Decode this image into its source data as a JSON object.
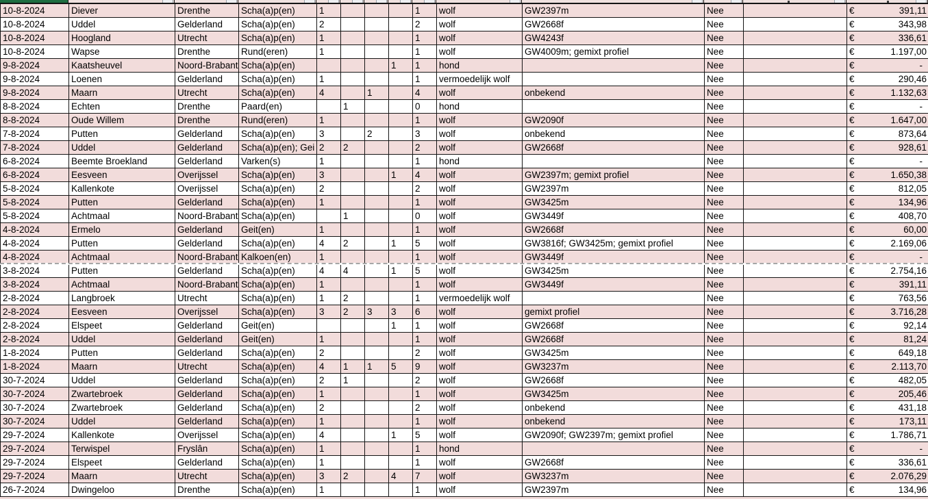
{
  "colors": {
    "band_pink": "#f2dcdb",
    "grid_border": "#141414",
    "selection_green": "#1e6e41",
    "page_break_gray": "#a6a6a6"
  },
  "currency_symbol": "€",
  "rows": [
    {
      "date": "10-8-2024",
      "place": "Diever",
      "province": "Drenthe",
      "animals": "Scha(a)p(en)",
      "counts": [
        "1",
        "",
        "",
        "",
        "1"
      ],
      "cause": "wolf",
      "profile": "GW2397m",
      "settled": "Nee",
      "amount": "391,11"
    },
    {
      "date": "10-8-2024",
      "place": "Uddel",
      "province": "Gelderland",
      "animals": "Scha(a)p(en)",
      "counts": [
        "2",
        "",
        "",
        "",
        "2"
      ],
      "cause": "wolf",
      "profile": "GW2668f",
      "settled": "Nee",
      "amount": "343,98"
    },
    {
      "date": "10-8-2024",
      "place": "Hoogland",
      "province": "Utrecht",
      "animals": "Scha(a)p(en)",
      "counts": [
        "1",
        "",
        "",
        "",
        "1"
      ],
      "cause": "wolf",
      "profile": "GW4243f",
      "settled": "Nee",
      "amount": "336,61"
    },
    {
      "date": "10-8-2024",
      "place": "Wapse",
      "province": "Drenthe",
      "animals": "Rund(eren)",
      "counts": [
        "1",
        "",
        "",
        "",
        "1"
      ],
      "cause": "wolf",
      "profile": "GW4009m; gemixt profiel",
      "settled": "Nee",
      "amount": "1.197,00"
    },
    {
      "date": "9-8-2024",
      "place": "Kaatsheuvel",
      "province": "Noord-Brabant",
      "animals": "Scha(a)p(en)",
      "counts": [
        "",
        "",
        "",
        "1",
        "1"
      ],
      "cause": "hond",
      "profile": "",
      "settled": "Nee",
      "amount": "-"
    },
    {
      "date": "9-8-2024",
      "place": "Loenen",
      "province": "Gelderland",
      "animals": "Scha(a)p(en)",
      "counts": [
        "1",
        "",
        "",
        "",
        "1"
      ],
      "cause": "vermoedelijk wolf",
      "profile": "",
      "settled": "Nee",
      "amount": "290,46"
    },
    {
      "date": "9-8-2024",
      "place": "Maarn",
      "province": "Utrecht",
      "animals": "Scha(a)p(en)",
      "counts": [
        "4",
        "",
        "1",
        "",
        "4"
      ],
      "cause": "wolf",
      "profile": "onbekend",
      "settled": "Nee",
      "amount": "1.132,63"
    },
    {
      "date": "8-8-2024",
      "place": "Echten",
      "province": "Drenthe",
      "animals": "Paard(en)",
      "counts": [
        "",
        "1",
        "",
        "",
        "0"
      ],
      "cause": "hond",
      "profile": "",
      "settled": "Nee",
      "amount": "-"
    },
    {
      "date": "8-8-2024",
      "place": "Oude Willem",
      "province": "Drenthe",
      "animals": "Rund(eren)",
      "counts": [
        "1",
        "",
        "",
        "",
        "1"
      ],
      "cause": "wolf",
      "profile": "GW2090f",
      "settled": "Nee",
      "amount": "1.647,00"
    },
    {
      "date": "7-8-2024",
      "place": "Putten",
      "province": "Gelderland",
      "animals": "Scha(a)p(en)",
      "counts": [
        "3",
        "",
        "2",
        "",
        "3"
      ],
      "cause": "wolf",
      "profile": "onbekend",
      "settled": "Nee",
      "amount": "873,64"
    },
    {
      "date": "7-8-2024",
      "place": "Uddel",
      "province": "Gelderland",
      "animals": "Scha(a)p(en); Gei",
      "counts": [
        "2",
        "2",
        "",
        "",
        "2"
      ],
      "cause": "wolf",
      "profile": "GW2668f",
      "settled": "Nee",
      "amount": "928,61"
    },
    {
      "date": "6-8-2024",
      "place": "Beemte Broekland",
      "province": "Gelderland",
      "animals": "Varken(s)",
      "counts": [
        "1",
        "",
        "",
        "",
        "1"
      ],
      "cause": "hond",
      "profile": "",
      "settled": "Nee",
      "amount": "-"
    },
    {
      "date": "6-8-2024",
      "place": "Eesveen",
      "province": "Overijssel",
      "animals": "Scha(a)p(en)",
      "counts": [
        "3",
        "",
        "",
        "1",
        "4"
      ],
      "cause": "wolf",
      "profile": "GW2397m; gemixt profiel",
      "settled": "Nee",
      "amount": "1.650,38"
    },
    {
      "date": "5-8-2024",
      "place": "Kallenkote",
      "province": "Overijssel",
      "animals": "Scha(a)p(en)",
      "counts": [
        "2",
        "",
        "",
        "",
        "2"
      ],
      "cause": "wolf",
      "profile": "GW2397m",
      "settled": "Nee",
      "amount": "812,05"
    },
    {
      "date": "5-8-2024",
      "place": "Putten",
      "province": "Gelderland",
      "animals": "Scha(a)p(en)",
      "counts": [
        "1",
        "",
        "",
        "",
        "1"
      ],
      "cause": "wolf",
      "profile": "GW3425m",
      "settled": "Nee",
      "amount": "134,96"
    },
    {
      "date": "5-8-2024",
      "place": "Achtmaal",
      "province": "Noord-Brabant",
      "animals": "Scha(a)p(en)",
      "counts": [
        "",
        "1",
        "",
        "",
        "0"
      ],
      "cause": "wolf",
      "profile": "GW3449f",
      "settled": "Nee",
      "amount": "408,70"
    },
    {
      "date": "4-8-2024",
      "place": "Ermelo",
      "province": "Gelderland",
      "animals": "Geit(en)",
      "counts": [
        "1",
        "",
        "",
        "",
        "1"
      ],
      "cause": "wolf",
      "profile": "GW2668f",
      "settled": "Nee",
      "amount": "60,00"
    },
    {
      "date": "4-8-2024",
      "place": "Putten",
      "province": "Gelderland",
      "animals": "Scha(a)p(en)",
      "counts": [
        "4",
        "2",
        "",
        "1",
        "5"
      ],
      "cause": "wolf",
      "profile": "GW3816f; GW3425m; gemixt profiel",
      "settled": "Nee",
      "amount": "2.169,06"
    },
    {
      "date": "4-8-2024",
      "place": "Achtmaal",
      "province": "Noord-Brabant",
      "animals": "Kalkoen(en)",
      "counts": [
        "1",
        "",
        "",
        "",
        "1"
      ],
      "cause": "wolf",
      "profile": "GW3449f",
      "settled": "Nee",
      "amount": "-"
    },
    {
      "date": "3-8-2024",
      "place": "Putten",
      "province": "Gelderland",
      "animals": "Scha(a)p(en)",
      "counts": [
        "4",
        "4",
        "",
        "1",
        "5"
      ],
      "cause": "wolf",
      "profile": "GW3425m",
      "settled": "Nee",
      "amount": "2.754,16"
    },
    {
      "date": "3-8-2024",
      "place": "Achtmaal",
      "province": "Noord-Brabant",
      "animals": "Scha(a)p(en)",
      "counts": [
        "1",
        "",
        "",
        "",
        "1"
      ],
      "cause": "wolf",
      "profile": "GW3449f",
      "settled": "Nee",
      "amount": "391,11"
    },
    {
      "date": "2-8-2024",
      "place": "Langbroek",
      "province": "Utrecht",
      "animals": "Scha(a)p(en)",
      "counts": [
        "1",
        "2",
        "",
        "",
        "1"
      ],
      "cause": "vermoedelijk wolf",
      "profile": "",
      "settled": "Nee",
      "amount": "763,56"
    },
    {
      "date": "2-8-2024",
      "place": "Eesveen",
      "province": "Overijssel",
      "animals": "Scha(a)p(en)",
      "counts": [
        "3",
        "2",
        "3",
        "3",
        "6"
      ],
      "cause": "wolf",
      "profile": "gemixt profiel",
      "settled": "Nee",
      "amount": "3.716,28"
    },
    {
      "date": "2-8-2024",
      "place": "Elspeet",
      "province": "Gelderland",
      "animals": "Geit(en)",
      "counts": [
        "",
        "",
        "",
        "1",
        "1"
      ],
      "cause": "wolf",
      "profile": "GW2668f",
      "settled": "Nee",
      "amount": "92,14"
    },
    {
      "date": "2-8-2024",
      "place": "Uddel",
      "province": "Gelderland",
      "animals": "Geit(en)",
      "counts": [
        "1",
        "",
        "",
        "",
        "1"
      ],
      "cause": "wolf",
      "profile": "GW2668f",
      "settled": "Nee",
      "amount": "81,24"
    },
    {
      "date": "1-8-2024",
      "place": "Putten",
      "province": "Gelderland",
      "animals": "Scha(a)p(en)",
      "counts": [
        "2",
        "",
        "",
        "",
        "2"
      ],
      "cause": "wolf",
      "profile": "GW3425m",
      "settled": "Nee",
      "amount": "649,18"
    },
    {
      "date": "1-8-2024",
      "place": "Maarn",
      "province": "Utrecht",
      "animals": "Scha(a)p(en)",
      "counts": [
        "4",
        "1",
        "1",
        "5",
        "9"
      ],
      "cause": "wolf",
      "profile": "GW3237m",
      "settled": "Nee",
      "amount": "2.113,70"
    },
    {
      "date": "30-7-2024",
      "place": "Uddel",
      "province": "Gelderland",
      "animals": "Scha(a)p(en)",
      "counts": [
        "2",
        "1",
        "",
        "",
        "2"
      ],
      "cause": "wolf",
      "profile": "GW2668f",
      "settled": "Nee",
      "amount": "482,05"
    },
    {
      "date": "30-7-2024",
      "place": "Zwartebroek",
      "province": "Gelderland",
      "animals": "Scha(a)p(en)",
      "counts": [
        "1",
        "",
        "",
        "",
        "1"
      ],
      "cause": "wolf",
      "profile": "GW3425m",
      "settled": "Nee",
      "amount": "205,46"
    },
    {
      "date": "30-7-2024",
      "place": "Zwartebroek",
      "province": "Gelderland",
      "animals": "Scha(a)p(en)",
      "counts": [
        "2",
        "",
        "",
        "",
        "2"
      ],
      "cause": "wolf",
      "profile": "onbekend",
      "settled": "Nee",
      "amount": "431,18"
    },
    {
      "date": "30-7-2024",
      "place": "Uddel",
      "province": "Gelderland",
      "animals": "Scha(a)p(en)",
      "counts": [
        "1",
        "",
        "",
        "",
        "1"
      ],
      "cause": "wolf",
      "profile": "onbekend",
      "settled": "Nee",
      "amount": "173,11"
    },
    {
      "date": "29-7-2024",
      "place": "Kallenkote",
      "province": "Overijssel",
      "animals": "Scha(a)p(en)",
      "counts": [
        "4",
        "",
        "",
        "1",
        "5"
      ],
      "cause": "wolf",
      "profile": "GW2090f; GW2397m; gemixt profiel",
      "settled": "Nee",
      "amount": "1.786,71"
    },
    {
      "date": "29-7-2024",
      "place": "Terwispel",
      "province": "Fryslân",
      "animals": "Scha(a)p(en)",
      "counts": [
        "1",
        "",
        "",
        "",
        "1"
      ],
      "cause": "hond",
      "profile": "",
      "settled": "Nee",
      "amount": "-"
    },
    {
      "date": "29-7-2024",
      "place": "Elspeet",
      "province": "Gelderland",
      "animals": "Scha(a)p(en)",
      "counts": [
        "1",
        "",
        "",
        "",
        "1"
      ],
      "cause": "wolf",
      "profile": "GW2668f",
      "settled": "Nee",
      "amount": "336,61"
    },
    {
      "date": "29-7-2024",
      "place": "Maarn",
      "province": "Utrecht",
      "animals": "Scha(a)p(en)",
      "counts": [
        "3",
        "2",
        "",
        "4",
        "7"
      ],
      "cause": "wolf",
      "profile": "GW3237m",
      "settled": "Nee",
      "amount": "2.076,29"
    },
    {
      "date": "26-7-2024",
      "place": "Dwingeloo",
      "province": "Drenthe",
      "animals": "Scha(a)p(en)",
      "counts": [
        "1",
        "",
        "",
        "",
        "1"
      ],
      "cause": "wolf",
      "profile": "GW2397m",
      "settled": "Nee",
      "amount": "134,96"
    }
  ]
}
